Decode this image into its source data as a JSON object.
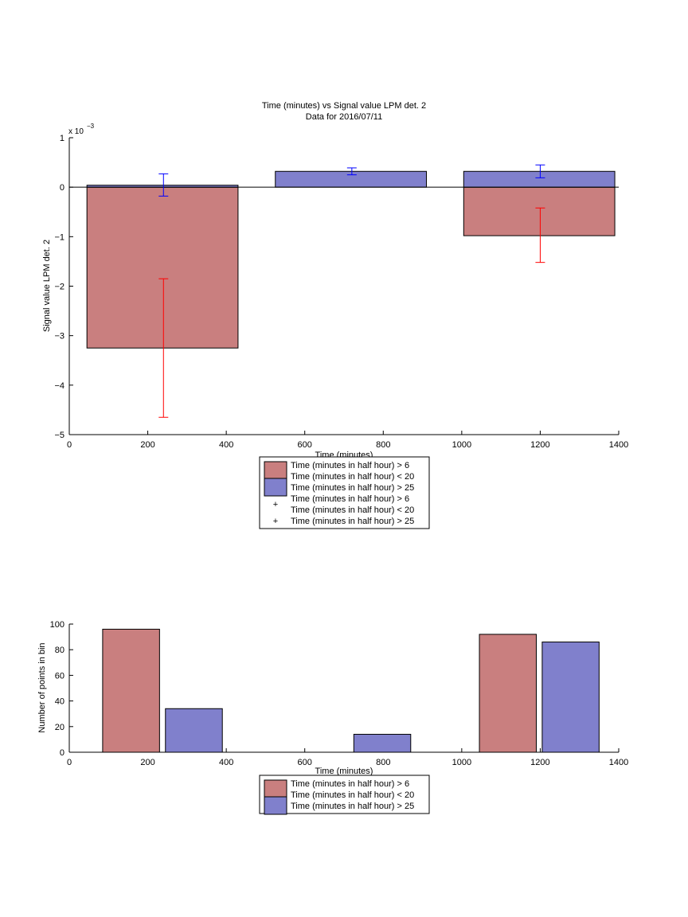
{
  "colors": {
    "red_fill": "#c97f7f",
    "blue_fill": "#8080cc",
    "red_err": "#ff0000",
    "blue_err": "#0000ff",
    "axis": "#000000"
  },
  "chart_data": [
    {
      "type": "bar",
      "title": "Time (minutes) vs Signal value LPM det. 2",
      "subtitle": "Data for 2016/07/11",
      "xlabel": "Time (minutes)",
      "ylabel": "Signal value LPM det. 2",
      "exponent_label": "x 10",
      "exponent_power": "−3",
      "xlim": [
        0,
        1400
      ],
      "ylim": [
        -5,
        1
      ],
      "xticks": [
        0,
        200,
        400,
        600,
        800,
        1000,
        1200,
        1400
      ],
      "yticks": [
        -5,
        -4,
        -3,
        -2,
        -1,
        0,
        1
      ],
      "ytick_labels": [
        "−5",
        "−4",
        "−3",
        "−2",
        "−1",
        "0",
        "1"
      ],
      "legend_location": "below",
      "legend": [
        {
          "kind": "patch",
          "color": "red",
          "lines": [
            "Time (minutes in half hour) > 6",
            "Time (minutes in half hour) < 20"
          ]
        },
        {
          "kind": "patch",
          "color": "blue",
          "lines": [
            "Time (minutes in half hour) > 25"
          ]
        },
        {
          "kind": "marker",
          "color": "red",
          "lines": [
            "Time (minutes in half hour) > 6",
            "Time (minutes in half hour) < 20"
          ]
        },
        {
          "kind": "marker",
          "color": "blue",
          "lines": [
            "Time (minutes in half hour) > 25"
          ]
        }
      ],
      "series": [
        {
          "color": "red",
          "bars": [
            {
              "x0": 45,
              "x1": 430,
              "value": -3.25
            },
            {
              "x0": 1005,
              "x1": 1390,
              "value": -0.98
            }
          ],
          "errorbars": [
            {
              "x": 240,
              "center": -3.25,
              "low": -4.65,
              "high": -1.85
            },
            {
              "x": 1200,
              "center": -0.98,
              "low": -1.52,
              "high": -0.42
            }
          ]
        },
        {
          "color": "blue",
          "bars": [
            {
              "x0": 45,
              "x1": 430,
              "value": 0.04
            },
            {
              "x0": 525,
              "x1": 910,
              "value": 0.32
            },
            {
              "x0": 1005,
              "x1": 1390,
              "value": 0.32
            }
          ],
          "errorbars": [
            {
              "x": 240,
              "center": 0.04,
              "low": -0.18,
              "high": 0.27
            },
            {
              "x": 720,
              "center": 0.32,
              "low": 0.25,
              "high": 0.39
            },
            {
              "x": 1200,
              "center": 0.32,
              "low": 0.19,
              "high": 0.45
            }
          ]
        }
      ]
    },
    {
      "type": "bar",
      "xlabel": "Time (minutes)",
      "ylabel": "Number of points in bin",
      "xlim": [
        0,
        1400
      ],
      "ylim": [
        0,
        100
      ],
      "xticks": [
        0,
        200,
        400,
        600,
        800,
        1000,
        1200,
        1400
      ],
      "yticks": [
        0,
        20,
        40,
        60,
        80,
        100
      ],
      "ytick_labels": [
        "0",
        "20",
        "40",
        "60",
        "80",
        "100"
      ],
      "legend_location": "below",
      "legend": [
        {
          "kind": "patch",
          "color": "red",
          "lines": [
            "Time (minutes in half hour) > 6",
            "Time (minutes in half hour) < 20"
          ]
        },
        {
          "kind": "patch",
          "color": "blue",
          "lines": [
            "Time (minutes in half hour) > 25"
          ]
        }
      ],
      "series": [
        {
          "color": "red",
          "bars": [
            {
              "x0": 85,
              "x1": 230,
              "value": 96
            },
            {
              "x0": 1045,
              "x1": 1190,
              "value": 92
            }
          ]
        },
        {
          "color": "blue",
          "bars": [
            {
              "x0": 245,
              "x1": 390,
              "value": 34
            },
            {
              "x0": 725,
              "x1": 870,
              "value": 14
            },
            {
              "x0": 1205,
              "x1": 1350,
              "value": 86
            }
          ]
        }
      ]
    }
  ]
}
